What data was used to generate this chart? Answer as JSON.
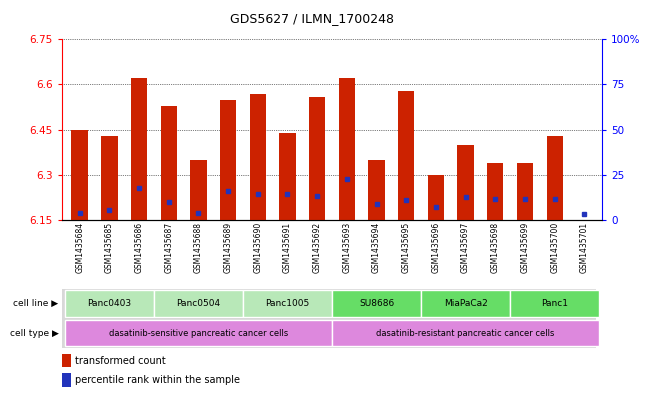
{
  "title": "GDS5627 / ILMN_1700248",
  "samples": [
    "GSM1435684",
    "GSM1435685",
    "GSM1435686",
    "GSM1435687",
    "GSM1435688",
    "GSM1435689",
    "GSM1435690",
    "GSM1435691",
    "GSM1435692",
    "GSM1435693",
    "GSM1435694",
    "GSM1435695",
    "GSM1435696",
    "GSM1435697",
    "GSM1435698",
    "GSM1435699",
    "GSM1435700",
    "GSM1435701"
  ],
  "transformed_count": [
    6.45,
    6.43,
    6.62,
    6.53,
    6.35,
    6.55,
    6.57,
    6.44,
    6.56,
    6.62,
    6.35,
    6.58,
    6.3,
    6.4,
    6.34,
    6.34,
    6.43,
    6.15
  ],
  "percentile_rank": [
    6.175,
    6.185,
    6.255,
    6.21,
    6.175,
    6.245,
    6.235,
    6.235,
    6.23,
    6.285,
    6.205,
    6.215,
    6.195,
    6.225,
    6.22,
    6.22,
    6.22,
    6.17
  ],
  "ylim_left": [
    6.15,
    6.75
  ],
  "yticks_left": [
    6.15,
    6.3,
    6.45,
    6.6,
    6.75
  ],
  "ytick_labels_left": [
    "6.15",
    "6.3",
    "6.45",
    "6.6",
    "6.75"
  ],
  "yticks_right_pct": [
    0,
    25,
    50,
    75,
    100
  ],
  "ytick_labels_right": [
    "0",
    "25",
    "50",
    "75",
    "100%"
  ],
  "bar_color": "#cc2200",
  "blue_color": "#2233bb",
  "bar_bottom": 6.15,
  "cell_lines": [
    {
      "label": "Panc0403",
      "start": 0,
      "end": 2
    },
    {
      "label": "Panc0504",
      "start": 3,
      "end": 5
    },
    {
      "label": "Panc1005",
      "start": 6,
      "end": 8
    },
    {
      "label": "SU8686",
      "start": 9,
      "end": 11
    },
    {
      "label": "MiaPaCa2",
      "start": 12,
      "end": 14
    },
    {
      "label": "Panc1",
      "start": 15,
      "end": 17
    }
  ],
  "cell_line_colors": [
    "#b8e8b8",
    "#b8e8b8",
    "#b8e8b8",
    "#66dd66",
    "#66dd66",
    "#66dd66"
  ],
  "cell_type_groups": [
    {
      "label": "dasatinib-sensitive pancreatic cancer cells",
      "start": 0,
      "end": 8
    },
    {
      "label": "dasatinib-resistant pancreatic cancer cells",
      "start": 9,
      "end": 17
    }
  ],
  "cell_type_color": "#dd88dd",
  "sample_bg_color": "#c8c8c8",
  "legend_items": [
    "transformed count",
    "percentile rank within the sample"
  ]
}
